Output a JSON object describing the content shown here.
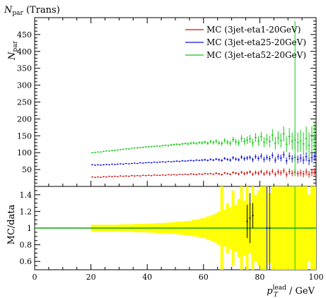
{
  "chart_data": [
    {
      "type": "scatter",
      "panel": "main",
      "title": "N_par (Trans)",
      "title_parts": {
        "main": "N",
        "sub": "par",
        "rest": " (Trans)"
      },
      "ylabel": "N_par",
      "ylabel_parts": {
        "main": "N",
        "sub": "par"
      },
      "xlim": [
        0,
        100
      ],
      "ylim": [
        0,
        500
      ],
      "yticks": [
        50,
        100,
        150,
        200,
        250,
        300,
        350,
        400,
        450
      ],
      "ytick_labels": [
        "50",
        "100",
        "150",
        "200",
        "250",
        "300",
        "350",
        "400",
        "450"
      ],
      "grid": false,
      "legend_position": "top-right",
      "series": [
        {
          "name": "MC (3jet-eta1-20GeV)",
          "color": "#d01010",
          "x": [
            20.5,
            21.5,
            22.5,
            23.5,
            24.5,
            25.5,
            26.5,
            27.5,
            28.5,
            29.5,
            30.5,
            31.5,
            32.5,
            33.5,
            34.5,
            35.5,
            36.5,
            37.5,
            38.5,
            39.5,
            40.5,
            41.5,
            42.5,
            43.5,
            44.5,
            45.5,
            46.5,
            47.5,
            48.5,
            49.5,
            50.5,
            51.5,
            52.5,
            53.5,
            54.5,
            55.5,
            56.5,
            57.5,
            58.5,
            59.5,
            60.5,
            61.5,
            62.5,
            63.5,
            64.5,
            65.5,
            66.5,
            67.5,
            68.5,
            69.5,
            70.5,
            71.5,
            72.5,
            73.5,
            74.5,
            75.5,
            76.5,
            77.5,
            78.5,
            79.5,
            80.5,
            81.5,
            82.5,
            83.5,
            84.5,
            85.5,
            86.5,
            87.5,
            88.5,
            89.5,
            90.5,
            91.5,
            92.5,
            93.5,
            94.5,
            95.5,
            96.5,
            97.5,
            98.5,
            99.5
          ],
          "y": [
            28,
            27,
            28,
            27,
            29,
            28,
            30,
            29,
            30,
            29,
            31,
            30,
            31,
            30,
            32,
            31,
            32,
            31,
            33,
            32,
            33,
            32,
            34,
            33,
            33,
            34,
            33,
            35,
            34,
            35,
            34,
            36,
            35,
            36,
            35,
            37,
            36,
            35,
            37,
            36,
            38,
            37,
            38,
            36,
            39,
            37,
            35,
            40,
            38,
            36,
            41,
            39,
            37,
            42,
            38,
            40,
            43,
            36,
            41,
            39,
            44,
            37,
            42,
            38,
            45,
            36,
            43,
            40,
            46,
            35,
            44,
            39,
            42,
            38,
            40,
            37,
            43,
            36,
            41,
            44
          ],
          "yerr": [
            1,
            1,
            1,
            1,
            1,
            1,
            1,
            1,
            1,
            1,
            1,
            1,
            1,
            1,
            1,
            1,
            1,
            1,
            1,
            1,
            1,
            1,
            1,
            1,
            1,
            1,
            1,
            1,
            1,
            1,
            1,
            1,
            1,
            1,
            2,
            2,
            2,
            2,
            2,
            2,
            2,
            2,
            2,
            2,
            3,
            3,
            3,
            3,
            3,
            3,
            4,
            4,
            4,
            4,
            5,
            5,
            5,
            5,
            6,
            6,
            6,
            6,
            7,
            7,
            7,
            7,
            8,
            8,
            8,
            8,
            9,
            9,
            9,
            9,
            10,
            10,
            10,
            10,
            11,
            11
          ]
        },
        {
          "name": "MC (3jet-eta25-20GeV)",
          "color": "#1010d8",
          "x": [
            20.5,
            21.5,
            22.5,
            23.5,
            24.5,
            25.5,
            26.5,
            27.5,
            28.5,
            29.5,
            30.5,
            31.5,
            32.5,
            33.5,
            34.5,
            35.5,
            36.5,
            37.5,
            38.5,
            39.5,
            40.5,
            41.5,
            42.5,
            43.5,
            44.5,
            45.5,
            46.5,
            47.5,
            48.5,
            49.5,
            50.5,
            51.5,
            52.5,
            53.5,
            54.5,
            55.5,
            56.5,
            57.5,
            58.5,
            59.5,
            60.5,
            61.5,
            62.5,
            63.5,
            64.5,
            65.5,
            66.5,
            67.5,
            68.5,
            69.5,
            70.5,
            71.5,
            72.5,
            73.5,
            74.5,
            75.5,
            76.5,
            77.5,
            78.5,
            79.5,
            80.5,
            81.5,
            82.5,
            83.5,
            84.5,
            85.5,
            86.5,
            87.5,
            88.5,
            89.5,
            90.5,
            91.5,
            92.5,
            93.5,
            94.5,
            95.5,
            96.5,
            97.5,
            98.5,
            99.5
          ],
          "y": [
            64,
            63,
            64,
            63,
            64,
            65,
            64,
            66,
            65,
            66,
            67,
            66,
            68,
            67,
            68,
            69,
            68,
            70,
            69,
            70,
            71,
            70,
            72,
            71,
            72,
            73,
            72,
            74,
            73,
            74,
            75,
            74,
            76,
            75,
            76,
            77,
            76,
            78,
            77,
            78,
            79,
            77,
            80,
            78,
            81,
            79,
            77,
            83,
            80,
            78,
            85,
            81,
            79,
            87,
            82,
            84,
            86,
            79,
            88,
            83,
            90,
            80,
            86,
            82,
            92,
            78,
            88,
            84,
            94,
            76,
            90,
            82,
            86,
            80,
            84,
            78,
            88,
            76,
            85,
            89
          ],
          "yerr": [
            1,
            1,
            1,
            1,
            1,
            1,
            1,
            1,
            1,
            1,
            1,
            1,
            1,
            1,
            1,
            1,
            1,
            1,
            1,
            1,
            1,
            1,
            1,
            1,
            1,
            1,
            1,
            1,
            1,
            2,
            2,
            2,
            2,
            2,
            2,
            2,
            2,
            2,
            2,
            3,
            3,
            3,
            3,
            3,
            3,
            4,
            4,
            4,
            4,
            5,
            5,
            5,
            5,
            6,
            6,
            6,
            6,
            7,
            7,
            7,
            8,
            8,
            8,
            8,
            9,
            9,
            9,
            10,
            10,
            10,
            11,
            11,
            11,
            12,
            12,
            12,
            13,
            13,
            14,
            14
          ]
        },
        {
          "name": "MC (3jet-eta52-20GeV)",
          "color": "#10c810",
          "x": [
            20.5,
            21.5,
            22.5,
            23.5,
            24.5,
            25.5,
            26.5,
            27.5,
            28.5,
            29.5,
            30.5,
            31.5,
            32.5,
            33.5,
            34.5,
            35.5,
            36.5,
            37.5,
            38.5,
            39.5,
            40.5,
            41.5,
            42.5,
            43.5,
            44.5,
            45.5,
            46.5,
            47.5,
            48.5,
            49.5,
            50.5,
            51.5,
            52.5,
            53.5,
            54.5,
            55.5,
            56.5,
            57.5,
            58.5,
            59.5,
            60.5,
            61.5,
            62.5,
            63.5,
            64.5,
            65.5,
            66.5,
            67.5,
            68.5,
            69.5,
            70.5,
            71.5,
            72.5,
            73.5,
            74.5,
            75.5,
            76.5,
            77.5,
            78.5,
            79.5,
            80.5,
            81.5,
            82.5,
            83.5,
            84.5,
            85.5,
            86.5,
            87.5,
            88.5,
            89.5,
            90.5,
            91.5,
            92.5,
            93.5,
            94.5,
            95.5,
            96.5,
            97.5,
            98.5,
            99.5
          ],
          "y": [
            100,
            101,
            102,
            102,
            104,
            105,
            105,
            106,
            107,
            108,
            109,
            110,
            111,
            111,
            113,
            114,
            114,
            115,
            116,
            117,
            117,
            118,
            119,
            120,
            119,
            121,
            122,
            121,
            123,
            124,
            125,
            124,
            126,
            127,
            126,
            128,
            129,
            127,
            130,
            129,
            131,
            128,
            133,
            130,
            134,
            129,
            127,
            136,
            131,
            128,
            139,
            132,
            129,
            142,
            133,
            137,
            141,
            129,
            145,
            134,
            148,
            131,
            140,
            133,
            152,
            128,
            144,
            136,
            156,
            125,
            148,
            134,
            138,
            130,
            135,
            126,
            142,
            122,
            138,
            145
          ],
          "yerr": [
            1,
            1,
            1,
            1,
            1,
            1,
            1,
            1,
            1,
            1,
            1,
            1,
            1,
            1,
            1,
            1,
            2,
            2,
            2,
            2,
            2,
            2,
            2,
            2,
            2,
            2,
            2,
            3,
            3,
            3,
            3,
            3,
            3,
            3,
            4,
            4,
            4,
            4,
            4,
            5,
            5,
            5,
            5,
            6,
            6,
            6,
            7,
            7,
            7,
            8,
            8,
            9,
            9,
            10,
            10,
            11,
            12,
            12,
            13,
            14,
            14,
            15,
            16,
            17,
            18,
            19,
            20,
            21,
            22,
            23,
            25,
            26,
            28,
            30,
            32,
            34,
            36,
            38,
            40,
            42
          ]
        }
      ]
    },
    {
      "type": "scatter",
      "panel": "ratio",
      "ylabel": "MC/data",
      "xlabel": "p_T^lead / GeV",
      "xlabel_parts": {
        "main": "p",
        "sub": "T",
        "sup": "lead",
        "rest": " / GeV"
      },
      "xlim": [
        0,
        100
      ],
      "ylim": [
        0.5,
        1.5
      ],
      "xticks": [
        0,
        20,
        40,
        60,
        80,
        100
      ],
      "xtick_labels": [
        "0",
        "20",
        "40",
        "60",
        "80",
        "100"
      ],
      "yticks": [
        0.6,
        0.8,
        1.0,
        1.2,
        1.4
      ],
      "ytick_labels": [
        "0.6",
        "0.8",
        "1",
        "1.2",
        "1.4"
      ],
      "reference_line": 1.0,
      "band_color": "#ffff00",
      "band": {
        "x_start": 20,
        "x_step": 1,
        "halfwidth": [
          0.04,
          0.04,
          0.04,
          0.04,
          0.04,
          0.04,
          0.04,
          0.04,
          0.04,
          0.04,
          0.045,
          0.045,
          0.045,
          0.045,
          0.045,
          0.05,
          0.05,
          0.05,
          0.05,
          0.05,
          0.055,
          0.055,
          0.055,
          0.06,
          0.06,
          0.06,
          0.065,
          0.065,
          0.07,
          0.07,
          0.075,
          0.075,
          0.08,
          0.085,
          0.085,
          0.09,
          0.1,
          0.1,
          0.11,
          0.12,
          0.12,
          0.14,
          0.15,
          0.16,
          0.18,
          0.2,
          0.5,
          0.22,
          0.3,
          0.25,
          0.45,
          0.28,
          0.35,
          0.5,
          0.33,
          0.5,
          0.3,
          0.5,
          0.4,
          0.45,
          0.5,
          0.5,
          0.5,
          0.42,
          0.5,
          0.5,
          0.5,
          0.5,
          0.5,
          0.5,
          0.5,
          0.5,
          0.5,
          0.5,
          0.5,
          0.5,
          0.5,
          0.4,
          0.5,
          0.5
        ]
      },
      "series": [
        {
          "name": "MC (3jet-eta25-20GeV)",
          "color": "#1010d8",
          "x": [
            82.5,
            83.5
          ],
          "y": [
            1.0,
            1.0
          ],
          "yerr": [
            0.5,
            0.5
          ]
        },
        {
          "name": "MC (3jet-eta52-20GeV)",
          "color": "#10c810",
          "x": [
            92.5
          ],
          "y": [
            1.0
          ],
          "yerr": [
            0.5
          ]
        },
        {
          "name": "MC (3jet-eta1-20GeV)",
          "color": "#000000",
          "x": [
            75.5,
            76.5,
            77.5
          ],
          "y": [
            1.08,
            1.12,
            1.15
          ],
          "yerr": [
            0.2,
            0.3,
            0.15
          ]
        }
      ]
    }
  ]
}
